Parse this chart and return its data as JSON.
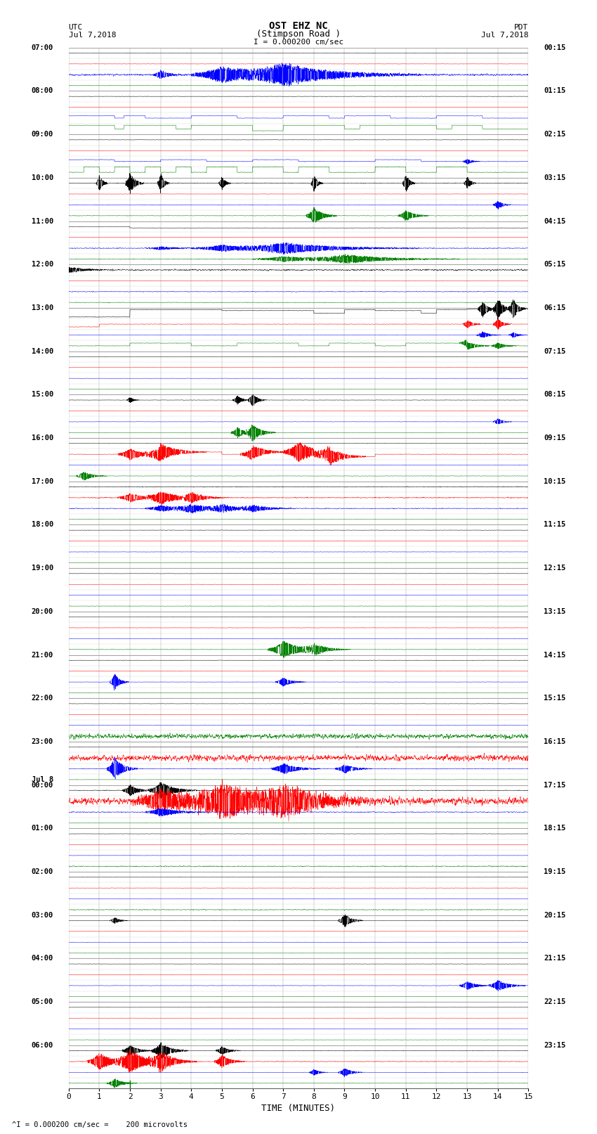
{
  "title_line1": "OST EHZ NC",
  "title_line2": "(Stimpson Road )",
  "title_line3": "I = 0.000200 cm/sec",
  "left_label_top": "UTC",
  "left_label_date": "Jul 7,2018",
  "right_label_top": "PDT",
  "right_label_date": "Jul 7,2018",
  "bottom_xlabel": "TIME (MINUTES)",
  "bottom_note": "^I = 0.000200 cm/sec =    200 microvolts",
  "x_ticks": [
    0,
    1,
    2,
    3,
    4,
    5,
    6,
    7,
    8,
    9,
    10,
    11,
    12,
    13,
    14,
    15
  ],
  "background_color": "#ffffff",
  "trace_colors": [
    "black",
    "red",
    "blue",
    "green"
  ],
  "grid_color": "#999999",
  "hour_labels_left": [
    "07:00",
    "08:00",
    "09:00",
    "10:00",
    "11:00",
    "12:00",
    "13:00",
    "14:00",
    "15:00",
    "16:00",
    "17:00",
    "18:00",
    "19:00",
    "20:00",
    "21:00",
    "22:00",
    "23:00",
    "Jul 8",
    "00:00",
    "01:00",
    "02:00",
    "03:00",
    "04:00",
    "05:00",
    "06:00"
  ],
  "hour_labels_right": [
    "00:15",
    "01:15",
    "02:15",
    "03:15",
    "04:15",
    "05:15",
    "06:15",
    "07:15",
    "08:15",
    "09:15",
    "10:15",
    "11:15",
    "12:15",
    "13:15",
    "14:15",
    "15:15",
    "16:15",
    "17:15",
    "18:15",
    "19:15",
    "20:15",
    "21:15",
    "22:15",
    "23:15"
  ],
  "n_hours": 24,
  "traces_per_hour": 4,
  "minutes_per_row": 15
}
